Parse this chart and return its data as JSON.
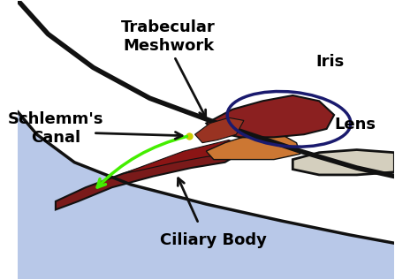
{
  "bg_color": "#ffffff",
  "labels": {
    "trabecular_meshwork": "Trabecular\nMeshwork",
    "schlemms_canal": "Schlemm's\nCanal",
    "iris": "Iris",
    "lens": "Lens",
    "ciliary_body": "Ciliary Body"
  },
  "colors": {
    "outline": "#111111",
    "aqueous_fill": "#b8c8e8",
    "lens_fill": "#d4cfbe",
    "iris_fill": "#8B2020",
    "ciliary_fill": "#7a1a1a",
    "ciliary_fill2": "#8B1515",
    "orange_fill": "#cc7733",
    "schlemms_yellow": "#cccc00",
    "green_arrow": "#44ee00",
    "black_arrow": "#111111",
    "iris_loop": "#1a1a6e",
    "label_color": "#000000",
    "trab_fill": "#993322"
  },
  "fontsize_large": 13,
  "fontsize_medium": 11
}
